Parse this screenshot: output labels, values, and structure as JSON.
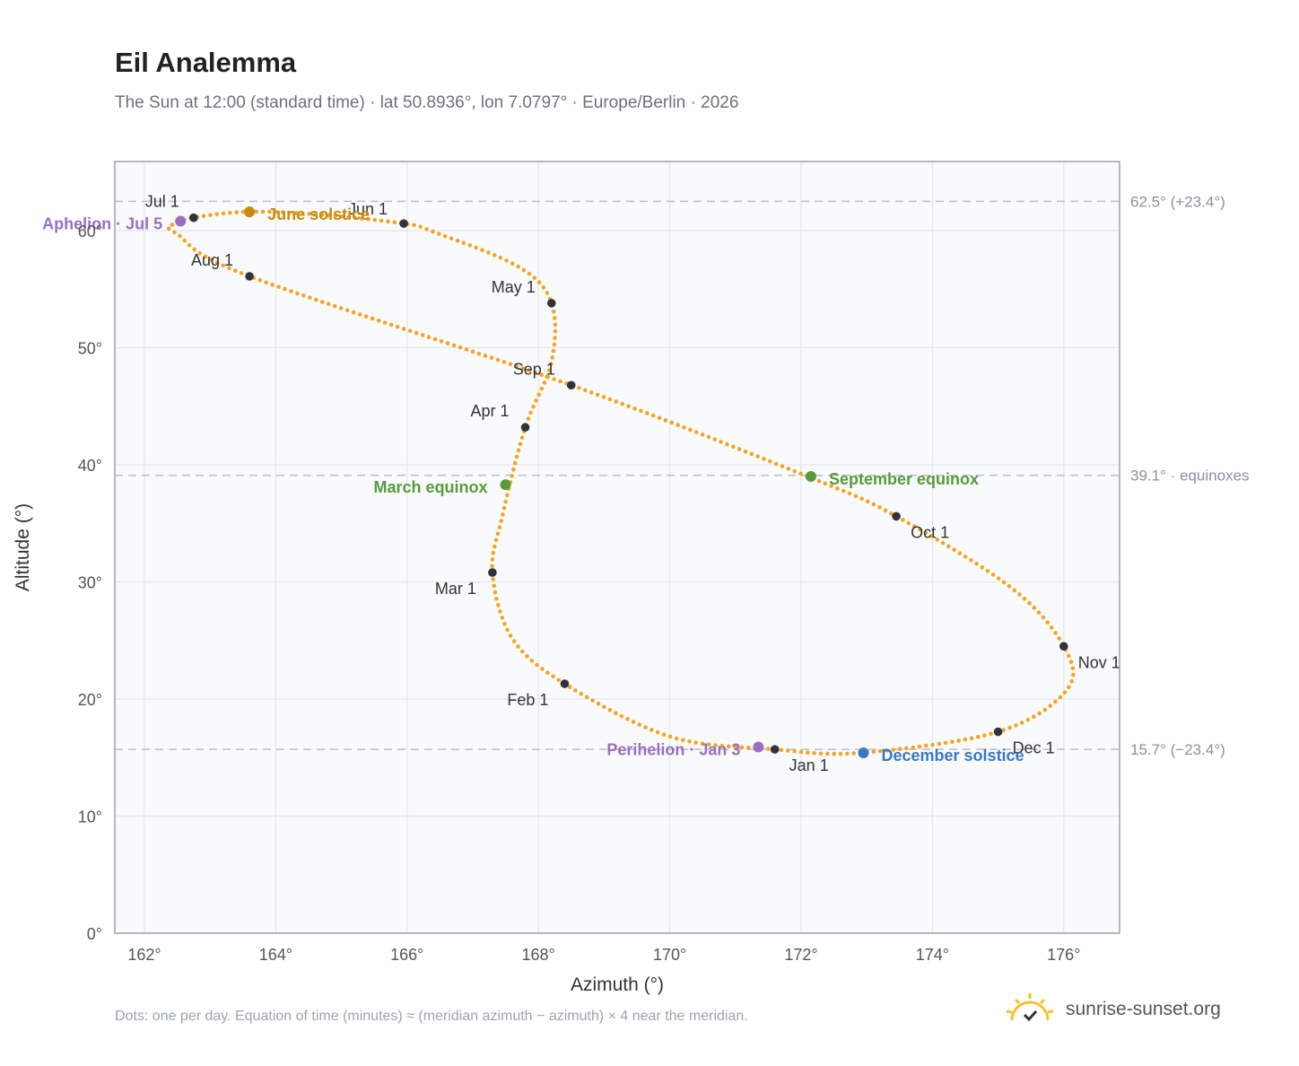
{
  "header": {
    "title": "Eil Analemma",
    "subtitle": "The Sun at 12:00 (standard time) · lat 50.8936°, lon 7.0797° · Europe/Berlin · 2026"
  },
  "footer": {
    "note": "Dots: one per day. Equation of time (minutes) ≈ (meridian azimuth − azimuth) × 4 near the meridian.",
    "brand": "sunrise-sunset.org",
    "brand_icon": "sun-logo-icon"
  },
  "colors": {
    "path": "#f2a52a",
    "month_marker": "#2f333b",
    "solstice_june": "#c98a10",
    "solstice_december": "#3a78c2",
    "equinox": "#5b9a3a",
    "apsis": "#9b6fbe",
    "reference_line": "#b8c0cc",
    "plot_background": "#f8fafc"
  },
  "chart_data": {
    "type": "scatter",
    "title": "Eil Analemma",
    "xlabel": "Azimuth (°)",
    "ylabel": "Altitude (°)",
    "xlim": [
      161.55,
      176.85
    ],
    "ylim": [
      0,
      65.9
    ],
    "x_ticks": [
      162,
      164,
      166,
      168,
      170,
      172,
      174,
      176
    ],
    "x_tick_labels": [
      "162°",
      "164°",
      "166°",
      "168°",
      "170°",
      "172°",
      "174°",
      "176°"
    ],
    "y_ticks": [
      0,
      10,
      20,
      30,
      40,
      50,
      60
    ],
    "y_tick_labels": [
      "0°",
      "10°",
      "20°",
      "30°",
      "40°",
      "50°",
      "60°"
    ],
    "grid": true,
    "reference_lines": [
      {
        "y": 62.5,
        "label": "62.5° (+23.4°)"
      },
      {
        "y": 39.1,
        "label": "39.1° · equinoxes"
      },
      {
        "y": 15.7,
        "label": "15.7° (−23.4°)"
      }
    ],
    "path_keypoints": [
      {
        "x": 171.6,
        "y": 15.7
      },
      {
        "x": 170.0,
        "y": 16.8
      },
      {
        "x": 168.4,
        "y": 21.3
      },
      {
        "x": 167.6,
        "y": 25.2
      },
      {
        "x": 167.3,
        "y": 30.8
      },
      {
        "x": 167.45,
        "y": 35.6
      },
      {
        "x": 167.8,
        "y": 43.2
      },
      {
        "x": 168.2,
        "y": 48.8
      },
      {
        "x": 168.2,
        "y": 53.8
      },
      {
        "x": 167.7,
        "y": 56.9
      },
      {
        "x": 166.4,
        "y": 59.9
      },
      {
        "x": 165.95,
        "y": 60.6
      },
      {
        "x": 164.6,
        "y": 61.4
      },
      {
        "x": 163.55,
        "y": 61.6
      },
      {
        "x": 162.75,
        "y": 61.1
      },
      {
        "x": 162.4,
        "y": 60.4
      },
      {
        "x": 162.5,
        "y": 59.7
      },
      {
        "x": 163.6,
        "y": 56.1
      },
      {
        "x": 168.5,
        "y": 46.8
      },
      {
        "x": 172.1,
        "y": 39.0
      },
      {
        "x": 173.45,
        "y": 35.6
      },
      {
        "x": 175.2,
        "y": 29.5
      },
      {
        "x": 176.0,
        "y": 24.5
      },
      {
        "x": 176.05,
        "y": 20.8
      },
      {
        "x": 175.0,
        "y": 17.2
      },
      {
        "x": 172.9,
        "y": 15.4
      },
      {
        "x": 171.6,
        "y": 15.7
      }
    ],
    "month_markers": [
      {
        "label": "Jan 1",
        "x": 171.6,
        "y": 15.7,
        "anchor": "start",
        "dx": 16,
        "dy": 24
      },
      {
        "label": "Feb 1",
        "x": 168.4,
        "y": 21.3,
        "anchor": "end",
        "dx": -18,
        "dy": 24
      },
      {
        "label": "Mar 1",
        "x": 167.3,
        "y": 30.8,
        "anchor": "end",
        "dx": -18,
        "dy": 24
      },
      {
        "label": "Apr 1",
        "x": 167.8,
        "y": 43.2,
        "anchor": "end",
        "dx": -18,
        "dy": -12
      },
      {
        "label": "May 1",
        "x": 168.2,
        "y": 53.8,
        "anchor": "end",
        "dx": -18,
        "dy": -12
      },
      {
        "label": "Jun 1",
        "x": 165.95,
        "y": 60.6,
        "anchor": "end",
        "dx": -18,
        "dy": -10
      },
      {
        "label": "Jul 1",
        "x": 162.75,
        "y": 61.1,
        "anchor": "end",
        "dx": -16,
        "dy": -12
      },
      {
        "label": "Aug 1",
        "x": 163.6,
        "y": 56.1,
        "anchor": "end",
        "dx": -18,
        "dy": -12
      },
      {
        "label": "Sep 1",
        "x": 168.5,
        "y": 46.8,
        "anchor": "end",
        "dx": -18,
        "dy": -12
      },
      {
        "label": "Oct 1",
        "x": 173.45,
        "y": 35.6,
        "anchor": "start",
        "dx": 16,
        "dy": 24
      },
      {
        "label": "Nov 1",
        "x": 176.0,
        "y": 24.5,
        "anchor": "start",
        "dx": 16,
        "dy": 24
      },
      {
        "label": "Dec 1",
        "x": 175.0,
        "y": 17.2,
        "anchor": "start",
        "dx": 16,
        "dy": 24
      }
    ],
    "events": [
      {
        "label": "June solstice",
        "x": 163.6,
        "y": 61.6,
        "color": "#c98a10",
        "anchor": "start",
        "dx": 20,
        "dy": 9
      },
      {
        "label": "March equinox",
        "x": 167.5,
        "y": 38.3,
        "color": "#5b9a3a",
        "anchor": "end",
        "dx": -20,
        "dy": 9
      },
      {
        "label": "September equinox",
        "x": 172.15,
        "y": 39.0,
        "color": "#5b9a3a",
        "anchor": "start",
        "dx": 20,
        "dy": 9
      },
      {
        "label": "December solstice",
        "x": 172.95,
        "y": 15.4,
        "color": "#3a78c2",
        "anchor": "start",
        "dx": 20,
        "dy": 9
      },
      {
        "label": "Aphelion · Jul 5",
        "x": 162.55,
        "y": 60.8,
        "color": "#9b6fbe",
        "anchor": "end",
        "dx": -20,
        "dy": 9
      },
      {
        "label": "Perihelion · Jan 3",
        "x": 171.35,
        "y": 15.9,
        "color": "#9b6fbe",
        "anchor": "end",
        "dx": -20,
        "dy": 9
      }
    ]
  }
}
